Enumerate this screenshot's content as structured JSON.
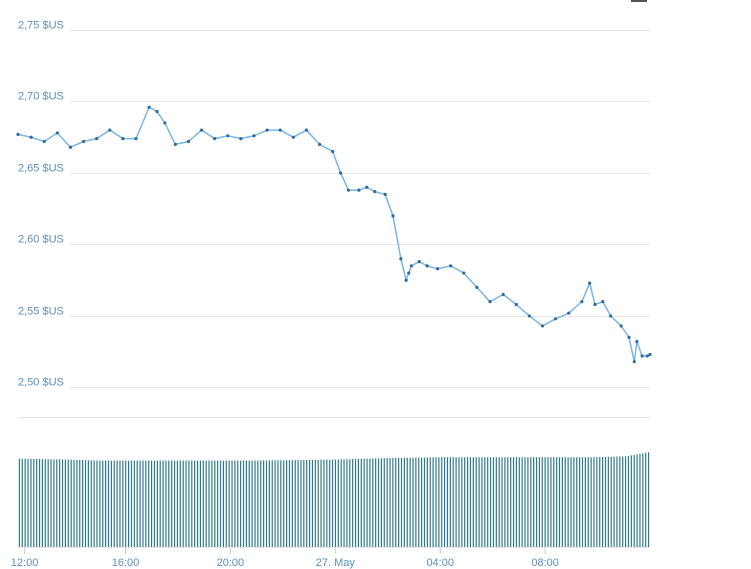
{
  "chart_data": {
    "type": "line",
    "title": "",
    "xlabel": "",
    "ylabel": "",
    "ylim": [
      2.48,
      2.75
    ],
    "y_ticks": [
      {
        "value": 2.75,
        "label": "2,75 $US"
      },
      {
        "value": 2.7,
        "label": "2,70 $US"
      },
      {
        "value": 2.65,
        "label": "2,65 $US"
      },
      {
        "value": 2.6,
        "label": "2,60 $US"
      },
      {
        "value": 2.55,
        "label": "2,55 $US"
      },
      {
        "value": 2.5,
        "label": "2,50 $US"
      }
    ],
    "x_range": [
      0,
      24.1
    ],
    "x_ticks": [
      {
        "value": 0.25,
        "label": "12:00"
      },
      {
        "value": 4.1,
        "label": "16:00"
      },
      {
        "value": 8.1,
        "label": "20:00"
      },
      {
        "value": 12.1,
        "label": "27. May"
      },
      {
        "value": 16.1,
        "label": "04:00"
      },
      {
        "value": 20.1,
        "label": "08:00"
      }
    ],
    "series": [
      {
        "x": [
          0,
          0.5,
          1,
          1.5,
          2,
          2.5,
          3,
          3.5,
          4,
          4.5,
          5,
          5.3,
          5.6,
          6,
          6.5,
          7,
          7.5,
          8,
          8.5,
          9,
          9.5,
          10,
          10.5,
          11,
          11.5,
          12,
          12.3,
          12.6,
          13,
          13.3,
          13.6,
          14,
          14.3,
          14.6,
          14.8,
          14.9,
          15,
          15.3,
          15.6,
          16,
          16.5,
          17,
          17.5,
          18,
          18.5,
          19,
          19.5,
          20,
          20.5,
          21,
          21.5,
          21.8,
          22,
          22.3,
          22.6,
          23,
          23.3,
          23.5,
          23.6,
          23.8,
          24,
          24.1
        ],
        "y": [
          2.677,
          2.675,
          2.672,
          2.678,
          2.668,
          2.672,
          2.674,
          2.68,
          2.674,
          2.674,
          2.696,
          2.693,
          2.685,
          2.67,
          2.672,
          2.68,
          2.674,
          2.676,
          2.674,
          2.676,
          2.68,
          2.68,
          2.675,
          2.68,
          2.67,
          2.665,
          2.65,
          2.638,
          2.638,
          2.64,
          2.637,
          2.635,
          2.62,
          2.59,
          2.575,
          2.58,
          2.585,
          2.588,
          2.585,
          2.583,
          2.585,
          2.58,
          2.57,
          2.56,
          2.565,
          2.558,
          2.55,
          2.543,
          2.548,
          2.552,
          2.56,
          2.573,
          2.558,
          2.56,
          2.55,
          2.543,
          2.535,
          2.518,
          2.532,
          2.522,
          2.522,
          2.523
        ]
      }
    ],
    "volume": {
      "bars": 220,
      "level": [
        {
          "x": 0,
          "v": 0.93
        },
        {
          "x": 2,
          "v": 0.92
        },
        {
          "x": 3,
          "v": 0.91
        },
        {
          "x": 6,
          "v": 0.91
        },
        {
          "x": 9,
          "v": 0.91
        },
        {
          "x": 12,
          "v": 0.92
        },
        {
          "x": 14,
          "v": 0.935
        },
        {
          "x": 16,
          "v": 0.945
        },
        {
          "x": 18,
          "v": 0.945
        },
        {
          "x": 22,
          "v": 0.945
        },
        {
          "x": 23.2,
          "v": 0.955
        },
        {
          "x": 24.1,
          "v": 1.0
        }
      ]
    },
    "colors": {
      "line": "#7ab6e4",
      "point": "#2f6aa0",
      "volume": "#2f7a8a",
      "tick_text": "#5a90b8",
      "grid": "#e6e6e6"
    },
    "grid": true,
    "legend": "none"
  },
  "toolbar": {
    "menu_icon": "hamburger-menu-icon"
  }
}
